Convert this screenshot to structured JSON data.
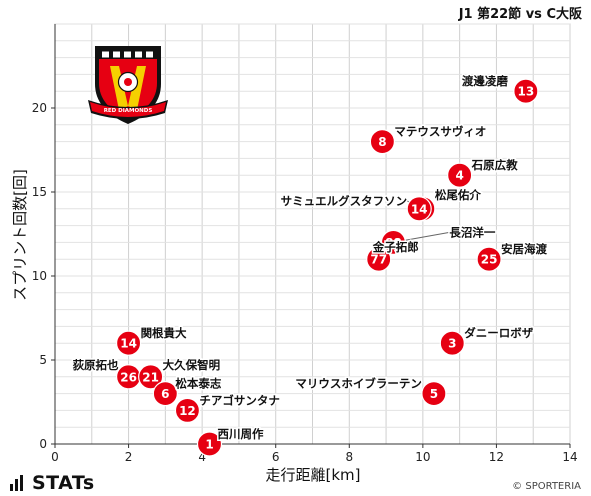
{
  "chart_data": {
    "type": "scatter",
    "title": "J1 第22節 vs C大阪",
    "xlabel": "走行距離[km]",
    "ylabel": "スプリント回数[回]",
    "xlim": [
      0,
      14
    ],
    "ylim": [
      0,
      25
    ],
    "xticks": [
      "0",
      "2",
      "4",
      "6",
      "8",
      "10",
      "12",
      "14"
    ],
    "yticks": [
      "0",
      "5",
      "10",
      "15",
      "20"
    ],
    "grid": true,
    "marker_color": "#e60012",
    "points": [
      {
        "number": "13",
        "name": "渡邊凌磨",
        "x": 12.8,
        "y": 21
      },
      {
        "number": "8",
        "name": "マテウスサヴィオ",
        "x": 8.9,
        "y": 18
      },
      {
        "number": "4",
        "name": "石原広教",
        "x": 11.0,
        "y": 16
      },
      {
        "number": "24",
        "name": "松尾佑介",
        "x": 10.0,
        "y": 14
      },
      {
        "number": "14",
        "name": "サミュエルグスタフソン",
        "x": 9.9,
        "y": 14
      },
      {
        "number": "88",
        "name": "長沼洋一",
        "x": 9.2,
        "y": 12
      },
      {
        "number": "77",
        "name": "金子拓郎",
        "x": 8.8,
        "y": 11
      },
      {
        "number": "25",
        "name": "安居海渡",
        "x": 11.8,
        "y": 11
      },
      {
        "number": "14",
        "name": "関根貴大",
        "x": 2.0,
        "y": 6
      },
      {
        "number": "3",
        "name": "ダニーロボザ",
        "x": 10.8,
        "y": 6
      },
      {
        "number": "26",
        "name": "荻原拓也",
        "x": 2.0,
        "y": 4
      },
      {
        "number": "21",
        "name": "大久保智明",
        "x": 2.6,
        "y": 4
      },
      {
        "number": "6",
        "name": "松本泰志",
        "x": 3.0,
        "y": 3
      },
      {
        "number": "5",
        "name": "マリウスホイブラーテン",
        "x": 10.3,
        "y": 3
      },
      {
        "number": "12",
        "name": "チアゴサンタナ",
        "x": 3.6,
        "y": 2
      },
      {
        "number": "1",
        "name": "西川周作",
        "x": 4.2,
        "y": 0
      }
    ]
  },
  "logo": {
    "text": "RED DIAMONDS",
    "icon": "urawa-reds-crest-icon"
  },
  "brand": {
    "label": "STATs",
    "icon": "stats-bars-icon"
  },
  "copyright": "© SPORTERIA"
}
